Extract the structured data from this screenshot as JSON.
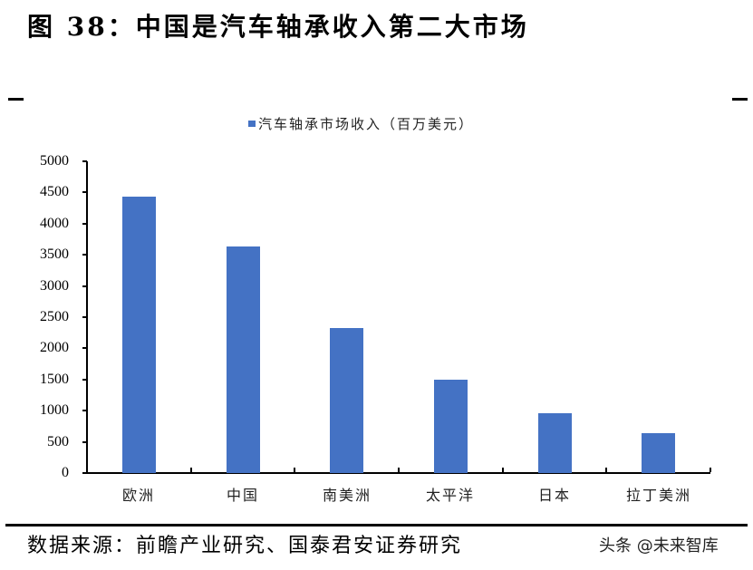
{
  "figure": {
    "title": "图 38：中国是汽车轴承收入第二大市场",
    "source": "数据来源：前瞻产业研究、国泰君安证券研究",
    "watermark": "头条 @未来智库"
  },
  "colors": {
    "bar": "#4472C4",
    "axis": "#000000"
  },
  "chart_data": {
    "type": "bar",
    "title": "中国是汽车轴承收入第二大市场",
    "categories": [
      "欧洲",
      "中国",
      "南美洲",
      "太平洋",
      "日本",
      "拉丁美洲"
    ],
    "series": [
      {
        "name": "汽车轴承市场收入（百万美元）",
        "values": [
          4430,
          3630,
          2330,
          1490,
          960,
          640
        ]
      }
    ],
    "values": [
      4430,
      3630,
      2330,
      1490,
      960,
      640
    ],
    "xlabel": "",
    "ylabel": "",
    "ylim": [
      0,
      5000
    ],
    "yticks": [
      "0",
      "500",
      "1000",
      "1500",
      "2000",
      "2500",
      "3000",
      "3500",
      "4000",
      "4500",
      "5000"
    ],
    "grid": false,
    "legend_position": "top"
  }
}
